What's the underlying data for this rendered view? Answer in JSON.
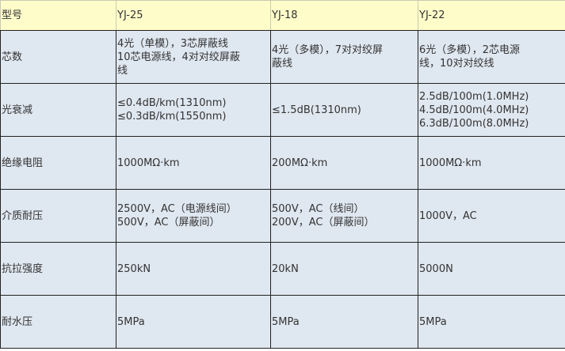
{
  "header": [
    "型号",
    "YJ-25",
    "YJ-18",
    "YJ-22"
  ],
  "rows": [
    {
      "label": "芯数",
      "cells": [
        [
          "4光（单模），3芯屏蔽线",
          "10芯电源线，4对对绞屏蔽",
          "线"
        ],
        [
          "4光（多模），7对对绞屏",
          "蔽线"
        ],
        [
          "6光（多模），2芯电源",
          "线，10对对绞线"
        ]
      ]
    },
    {
      "label": "光衰减",
      "cells": [
        [
          "≤0.4dB/km(1310nm)",
          "≤0.3dB/km(1550nm)"
        ],
        [
          "≤1.5dB(1310nm)"
        ],
        [
          "2.5dB/100m(1.0MHz)",
          "4.5dB/100m(4.0MHz)",
          "6.3dB/100m(8.0MHz)"
        ]
      ]
    },
    {
      "label": "绝缘电阻",
      "cells": [
        [
          "1000MΩ·km"
        ],
        [
          "200MΩ·km"
        ],
        [
          "1000MΩ·km"
        ]
      ]
    },
    {
      "label": "介质耐压",
      "cells": [
        [
          "2500V，AC（电源线间）",
          "500V，AC（屏蔽间）"
        ],
        [
          "500V，AC（线间）",
          "200V，AC（屏蔽间）"
        ],
        [
          "1000V，AC"
        ]
      ]
    },
    {
      "label": "抗拉强度",
      "cells": [
        [
          "250kN"
        ],
        [
          "20kN"
        ],
        [
          "5000N"
        ]
      ]
    },
    {
      "label": "耐水压",
      "cells": [
        [
          "5MPa"
        ],
        [
          "5MPa"
        ],
        [
          "5MPa"
        ]
      ]
    }
  ]
}
